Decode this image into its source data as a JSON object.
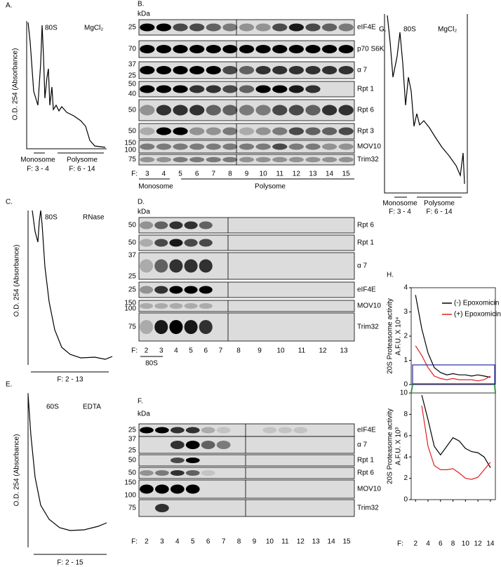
{
  "panels": {
    "A": {
      "letter": "A.",
      "peak": "80S",
      "condition": "MgCl₂",
      "y_label": "O.D. 254 (Absorbance)",
      "groups": [
        {
          "name": "Monosome",
          "fractions": "F: 3 - 4"
        },
        {
          "name": "Polysome",
          "fractions": "F: 6 - 14"
        }
      ]
    },
    "B": {
      "letter": "B.",
      "unit": "kDa",
      "rows": [
        {
          "name": "eIF4E",
          "kda": [
            "25"
          ]
        },
        {
          "name": "p70 S6K",
          "kda": [
            "70"
          ]
        },
        {
          "name": "α 7",
          "kda": [
            "37",
            "25"
          ]
        },
        {
          "name": "Rpt 1",
          "kda": [
            "50",
            "40"
          ]
        },
        {
          "name": "Rpt 6",
          "kda": [
            "50"
          ]
        },
        {
          "name": "Rpt 3",
          "kda": [
            "50"
          ]
        },
        {
          "name": "MOV10",
          "kda": [
            "150",
            "100"
          ]
        },
        {
          "name": "Trim32",
          "kda": [
            "75"
          ]
        }
      ],
      "fraction_label": "F:",
      "fractions": [
        "3",
        "4",
        "5",
        "6",
        "7",
        "8",
        "9",
        "10",
        "11",
        "12",
        "13",
        "14",
        "15"
      ],
      "groups": [
        "Monosome",
        "Polysome"
      ]
    },
    "C": {
      "letter": "C.",
      "peak": "80S",
      "condition": "RNase",
      "y_label": "O.D. 254 (Absorbance)",
      "fractions": "F: 2 - 13"
    },
    "D": {
      "letter": "D.",
      "unit": "kDa",
      "rows": [
        {
          "name": "Rpt 6",
          "kda": [
            "50"
          ]
        },
        {
          "name": "Rpt 1",
          "kda": [
            "50"
          ]
        },
        {
          "name": "α 7",
          "kda": [
            "37",
            "25"
          ]
        },
        {
          "name": "eIF4E",
          "kda": [
            "25"
          ]
        },
        {
          "name": "MOV10",
          "kda": [
            "150",
            "100"
          ]
        },
        {
          "name": "Trim32",
          "kda": [
            "75"
          ]
        }
      ],
      "fraction_label": "F:",
      "fractions": [
        "2",
        "3",
        "4",
        "5",
        "6",
        "7",
        "8",
        "9",
        "10",
        "11",
        "12",
        "13"
      ],
      "peak": "80S"
    },
    "E": {
      "letter": "E.",
      "peak": "60S",
      "condition": "EDTA",
      "y_label": "O.D. 254 (Absorbance)",
      "fractions": "F: 2 - 15"
    },
    "F": {
      "letter": "F.",
      "unit": "kDa",
      "rows": [
        {
          "name": "eIF4E",
          "kda": [
            "25"
          ]
        },
        {
          "name": "α 7",
          "kda": [
            "37",
            "25"
          ]
        },
        {
          "name": "Rpt 1",
          "kda": [
            "50"
          ]
        },
        {
          "name": "Rpt 6",
          "kda": [
            "50"
          ]
        },
        {
          "name": "MOV10",
          "kda": [
            "150",
            "100"
          ]
        },
        {
          "name": "Trim32",
          "kda": [
            "75"
          ]
        }
      ],
      "fraction_label": "F:",
      "fractions": [
        "2",
        "3",
        "4",
        "5",
        "6",
        "7",
        "8",
        "9",
        "10",
        "11",
        "12",
        "13",
        "14",
        "15"
      ]
    },
    "G": {
      "letter": "G.",
      "peak": "80S",
      "condition": "MgCl₂",
      "groups": [
        {
          "name": "Monosome",
          "fractions": "F: 3 - 4"
        },
        {
          "name": "Polysome",
          "fractions": "F: 6 - 14"
        }
      ]
    },
    "H": {
      "letter": "H."
    }
  },
  "chart_data": [
    {
      "type": "line",
      "ylabel": "20S Proteasome activity",
      "ylabel_unit": "A.F.U. X 10⁴",
      "xlim": [
        1.3,
        14.8
      ],
      "ylim": [
        0,
        4
      ],
      "yticks": [
        0,
        1,
        2,
        3,
        4
      ],
      "series": [
        {
          "name": "(-) Epoxomicin",
          "color": "#000000",
          "x": [
            2,
            3,
            4,
            5,
            6,
            7,
            8,
            9,
            10,
            11,
            12,
            13,
            14
          ],
          "values": [
            3.7,
            2.3,
            1.3,
            0.7,
            0.5,
            0.4,
            0.45,
            0.4,
            0.4,
            0.35,
            0.4,
            0.35,
            0.3
          ]
        },
        {
          "name": "(+) Epoxomicin",
          "color": "#e0201b",
          "x": [
            2,
            3,
            4,
            5,
            6,
            7,
            8,
            9,
            10,
            11,
            12,
            13,
            14
          ],
          "values": [
            1.6,
            1.2,
            0.7,
            0.35,
            0.25,
            0.2,
            0.25,
            0.2,
            0.2,
            0.2,
            0.15,
            0.2,
            0.35
          ]
        }
      ]
    },
    {
      "type": "line",
      "ylabel": "20S Proteasome activity",
      "ylabel_unit": "A.F.U. X 10³",
      "xlabel": "F:",
      "xlim": [
        1.3,
        14.8
      ],
      "ylim": [
        0,
        10
      ],
      "yticks": [
        0,
        2,
        4,
        6,
        8,
        10
      ],
      "xticks": [
        2,
        4,
        6,
        8,
        10,
        12,
        14
      ],
      "series": [
        {
          "color": "#000000",
          "x": [
            3,
            4,
            5,
            6,
            7,
            8,
            9,
            10,
            11,
            12,
            13,
            14
          ],
          "values": [
            9.8,
            7.5,
            5,
            4.2,
            5,
            5.8,
            5.5,
            4.8,
            4.5,
            4.4,
            4,
            3
          ]
        },
        {
          "color": "#e0201b",
          "x": [
            3,
            4,
            5,
            6,
            7,
            8,
            9,
            10,
            11,
            12,
            13,
            14
          ],
          "values": [
            8.8,
            5,
            3.2,
            2.8,
            2.8,
            2.9,
            2.5,
            2,
            1.9,
            2.1,
            2.8,
            3.5
          ]
        }
      ]
    }
  ]
}
